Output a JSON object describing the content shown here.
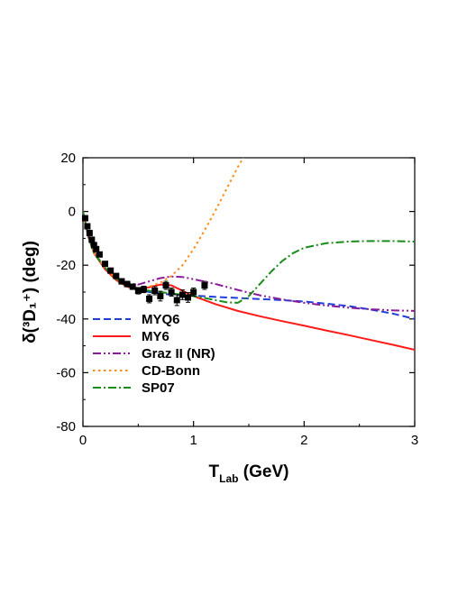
{
  "chart_data": {
    "type": "line",
    "title": "",
    "xlabel": "T",
    "xlabel_sub": "Lab",
    "xlabel_unit": " (GeV)",
    "ylabel": "δ(³D₁⁺) (deg)",
    "xlim": [
      0,
      3
    ],
    "ylim": [
      -80,
      20
    ],
    "x_ticks": [
      0,
      1,
      2,
      3
    ],
    "y_ticks": [
      -80,
      -60,
      -40,
      -20,
      0,
      20
    ],
    "x_tick_labels": [
      "0",
      "1",
      "2",
      "3"
    ],
    "y_tick_labels": [
      "-80",
      "-60",
      "-40",
      "-20",
      "0",
      "20"
    ],
    "grid": false,
    "legend_position": "bottom-left",
    "series": [
      {
        "name": "MYQ6",
        "color": "#1f3fd6",
        "dash": "dashed",
        "x": [
          0.0,
          0.05,
          0.1,
          0.2,
          0.3,
          0.4,
          0.5,
          0.6,
          0.7,
          0.8,
          0.9,
          1.0,
          1.2,
          1.4,
          1.6,
          1.8,
          2.0,
          2.2,
          2.4,
          2.6,
          2.8,
          3.0
        ],
        "y": [
          0.0,
          -9.5,
          -15.5,
          -21.0,
          -25.0,
          -27.5,
          -29.0,
          -30.0,
          -30.5,
          -31.0,
          -31.2,
          -31.3,
          -31.8,
          -32.2,
          -32.6,
          -33.0,
          -33.5,
          -34.3,
          -35.2,
          -36.5,
          -38.0,
          -40.0
        ]
      },
      {
        "name": "MY6",
        "color": "#ff1a1a",
        "dash": "solid",
        "x": [
          0.0,
          0.05,
          0.1,
          0.2,
          0.3,
          0.4,
          0.5,
          0.6,
          0.7,
          0.8,
          0.9,
          1.0,
          1.2,
          1.4,
          1.6,
          1.8,
          2.0,
          2.2,
          2.4,
          2.6,
          2.8,
          3.0
        ],
        "y": [
          0.0,
          -9.5,
          -15.5,
          -21.5,
          -25.5,
          -28.0,
          -29.0,
          -28.2,
          -27.2,
          -27.5,
          -29.5,
          -31.5,
          -34.5,
          -37.0,
          -39.0,
          -40.8,
          -42.5,
          -44.3,
          -46.0,
          -47.8,
          -49.6,
          -51.5
        ]
      },
      {
        "name": "Graz II (NR)",
        "color": "#8b1a9b",
        "dash": "dashdotdot",
        "x": [
          0.0,
          0.05,
          0.1,
          0.2,
          0.3,
          0.4,
          0.5,
          0.6,
          0.7,
          0.8,
          0.9,
          1.0,
          1.2,
          1.4,
          1.6,
          1.8,
          2.0,
          2.2,
          2.4,
          2.6,
          2.8,
          3.0
        ],
        "y": [
          0.0,
          -9.0,
          -15.0,
          -21.0,
          -24.8,
          -26.8,
          -27.2,
          -26.0,
          -24.8,
          -24.2,
          -24.4,
          -25.2,
          -27.0,
          -29.2,
          -31.2,
          -32.7,
          -34.0,
          -35.0,
          -35.8,
          -36.4,
          -36.8,
          -37.0
        ]
      },
      {
        "name": "CD-Bonn",
        "color": "#ff8c1a",
        "dash": "dotted",
        "x": [
          0.0,
          0.05,
          0.1,
          0.2,
          0.3,
          0.4,
          0.5,
          0.6,
          0.7,
          0.8,
          0.9,
          1.0,
          1.1,
          1.2,
          1.3,
          1.4,
          1.45
        ],
        "y": [
          0.0,
          -9.5,
          -15.5,
          -21.0,
          -25.0,
          -27.5,
          -28.5,
          -28.0,
          -26.5,
          -24.0,
          -20.0,
          -14.0,
          -7.0,
          0.5,
          8.5,
          16.5,
          20.0
        ]
      },
      {
        "name": "SP07",
        "color": "#1a8c1a",
        "dash": "dashdot",
        "x": [
          0.0,
          0.05,
          0.1,
          0.2,
          0.3,
          0.4,
          0.5,
          0.6,
          0.7,
          0.8,
          0.9,
          1.0,
          1.1,
          1.2,
          1.3,
          1.4,
          1.5,
          1.6,
          1.7,
          1.8,
          1.9,
          2.0,
          2.2,
          2.4,
          2.6,
          2.8,
          3.0
        ],
        "y": [
          0.0,
          -9.5,
          -15.5,
          -21.0,
          -25.0,
          -27.8,
          -29.0,
          -29.5,
          -30.0,
          -30.5,
          -31.0,
          -31.5,
          -32.2,
          -33.0,
          -33.8,
          -34.0,
          -31.5,
          -27.0,
          -22.5,
          -18.5,
          -15.5,
          -13.5,
          -11.8,
          -11.2,
          -11.0,
          -11.0,
          -11.2
        ]
      }
    ],
    "data_points": {
      "x": [
        0.02,
        0.04,
        0.06,
        0.08,
        0.1,
        0.12,
        0.15,
        0.2,
        0.25,
        0.3,
        0.35,
        0.4,
        0.45,
        0.5,
        0.55,
        0.6,
        0.65,
        0.7,
        0.75,
        0.8,
        0.85,
        0.9,
        0.95,
        1.0,
        1.1
      ],
      "y": [
        -2.5,
        -5.5,
        -8.0,
        -10.5,
        -12.5,
        -14.0,
        -16.0,
        -19.5,
        -22.0,
        -24.0,
        -26.0,
        -27.0,
        -28.0,
        -29.5,
        -29.0,
        -32.5,
        -29.5,
        -31.5,
        -27.5,
        -30.0,
        -33.0,
        -31.0,
        -32.0,
        -30.0,
        -27.5
      ],
      "err": [
        0.5,
        0.5,
        0.6,
        0.6,
        0.7,
        0.7,
        0.8,
        0.8,
        0.9,
        0.9,
        1.0,
        1.0,
        1.0,
        1.2,
        1.2,
        1.5,
        1.5,
        1.8,
        1.5,
        1.5,
        2.0,
        1.8,
        1.8,
        1.5,
        1.5
      ]
    }
  }
}
